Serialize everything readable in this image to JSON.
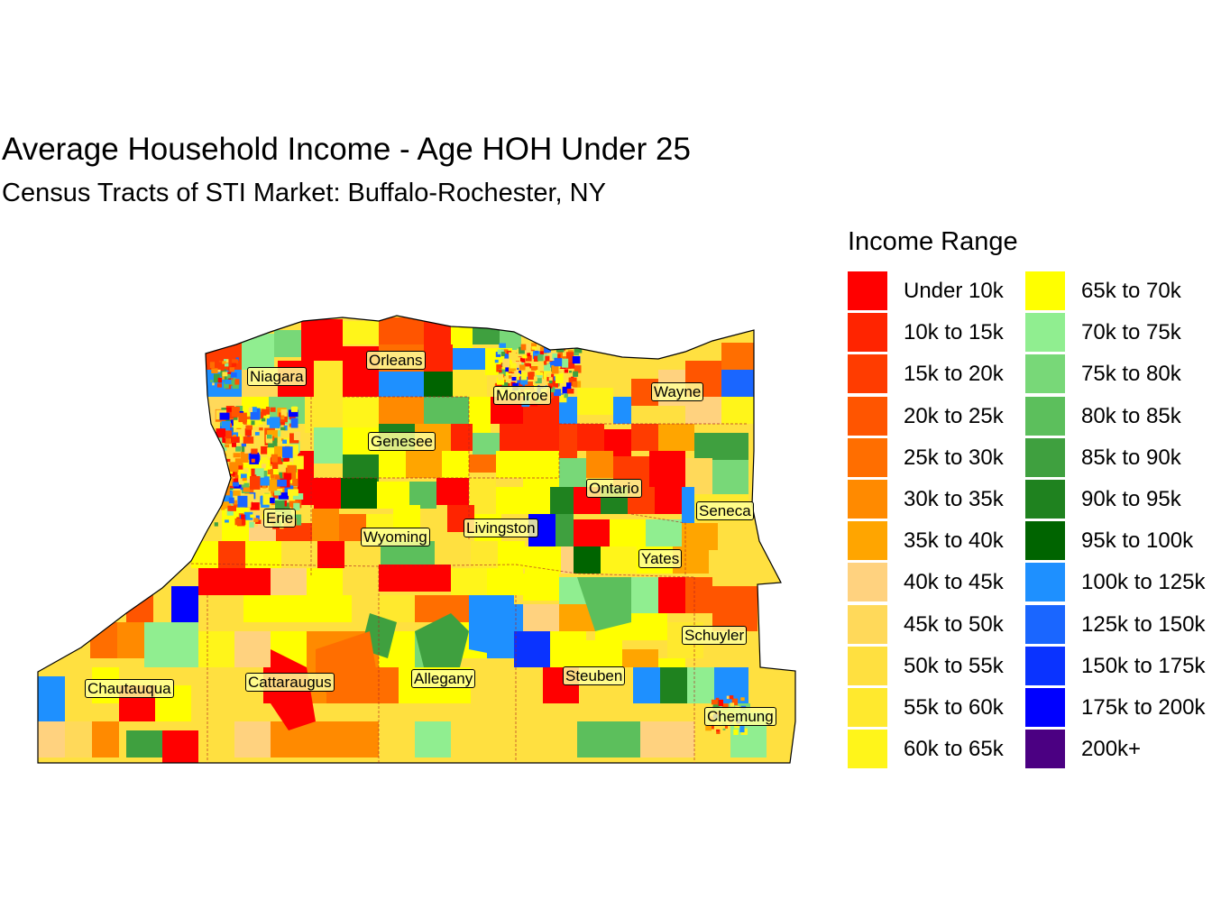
{
  "title": "Average Household Income - Age HOH Under 25",
  "subtitle": "Census Tracts of STI Market: Buffalo-Rochester, NY",
  "legend": {
    "title": "Income Range",
    "items": [
      {
        "label": "Under 10k",
        "color": "#FF0000"
      },
      {
        "label": "10k to 15k",
        "color": "#FF2400"
      },
      {
        "label": "15k to 20k",
        "color": "#FF3C00"
      },
      {
        "label": "20k to 25k",
        "color": "#FF5500"
      },
      {
        "label": "25k to 30k",
        "color": "#FF6E00"
      },
      {
        "label": "30k to 35k",
        "color": "#FF8A00"
      },
      {
        "label": "35k to 40k",
        "color": "#FFA500"
      },
      {
        "label": "40k to 45k",
        "color": "#FFD27F"
      },
      {
        "label": "45k to 50k",
        "color": "#FFD95A"
      },
      {
        "label": "50k to 55k",
        "color": "#FFE040"
      },
      {
        "label": "55k to 60k",
        "color": "#FFE92E"
      },
      {
        "label": "60k to 65k",
        "color": "#FFF51A"
      },
      {
        "label": "65k to 70k",
        "color": "#FFFF00"
      },
      {
        "label": "70k to 75k",
        "color": "#90EE90"
      },
      {
        "label": "75k to 80k",
        "color": "#78D878"
      },
      {
        "label": "80k to 85k",
        "color": "#5CBF5C"
      },
      {
        "label": "85k to 90k",
        "color": "#3FA03F"
      },
      {
        "label": "90k to 95k",
        "color": "#1F821F"
      },
      {
        "label": "95k to 100k",
        "color": "#006400"
      },
      {
        "label": "100k to 125k",
        "color": "#1E90FF"
      },
      {
        "label": "125k to 150k",
        "color": "#1A66FF"
      },
      {
        "label": "150k to 175k",
        "color": "#0A33FF"
      },
      {
        "label": "175k to 200k",
        "color": "#0000FF"
      },
      {
        "label": "200k+",
        "color": "#4B0082"
      }
    ]
  },
  "counties": [
    {
      "name": "Niagara"
    },
    {
      "name": "Orleans"
    },
    {
      "name": "Monroe"
    },
    {
      "name": "Wayne"
    },
    {
      "name": "Genesee"
    },
    {
      "name": "Ontario"
    },
    {
      "name": "Seneca"
    },
    {
      "name": "Erie"
    },
    {
      "name": "Wyoming"
    },
    {
      "name": "Livingston"
    },
    {
      "name": "Yates"
    },
    {
      "name": "Schuyler"
    },
    {
      "name": "Chautauqua"
    },
    {
      "name": "Cattaraugus"
    },
    {
      "name": "Allegany"
    },
    {
      "name": "Steuben"
    },
    {
      "name": "Chemung"
    }
  ]
}
